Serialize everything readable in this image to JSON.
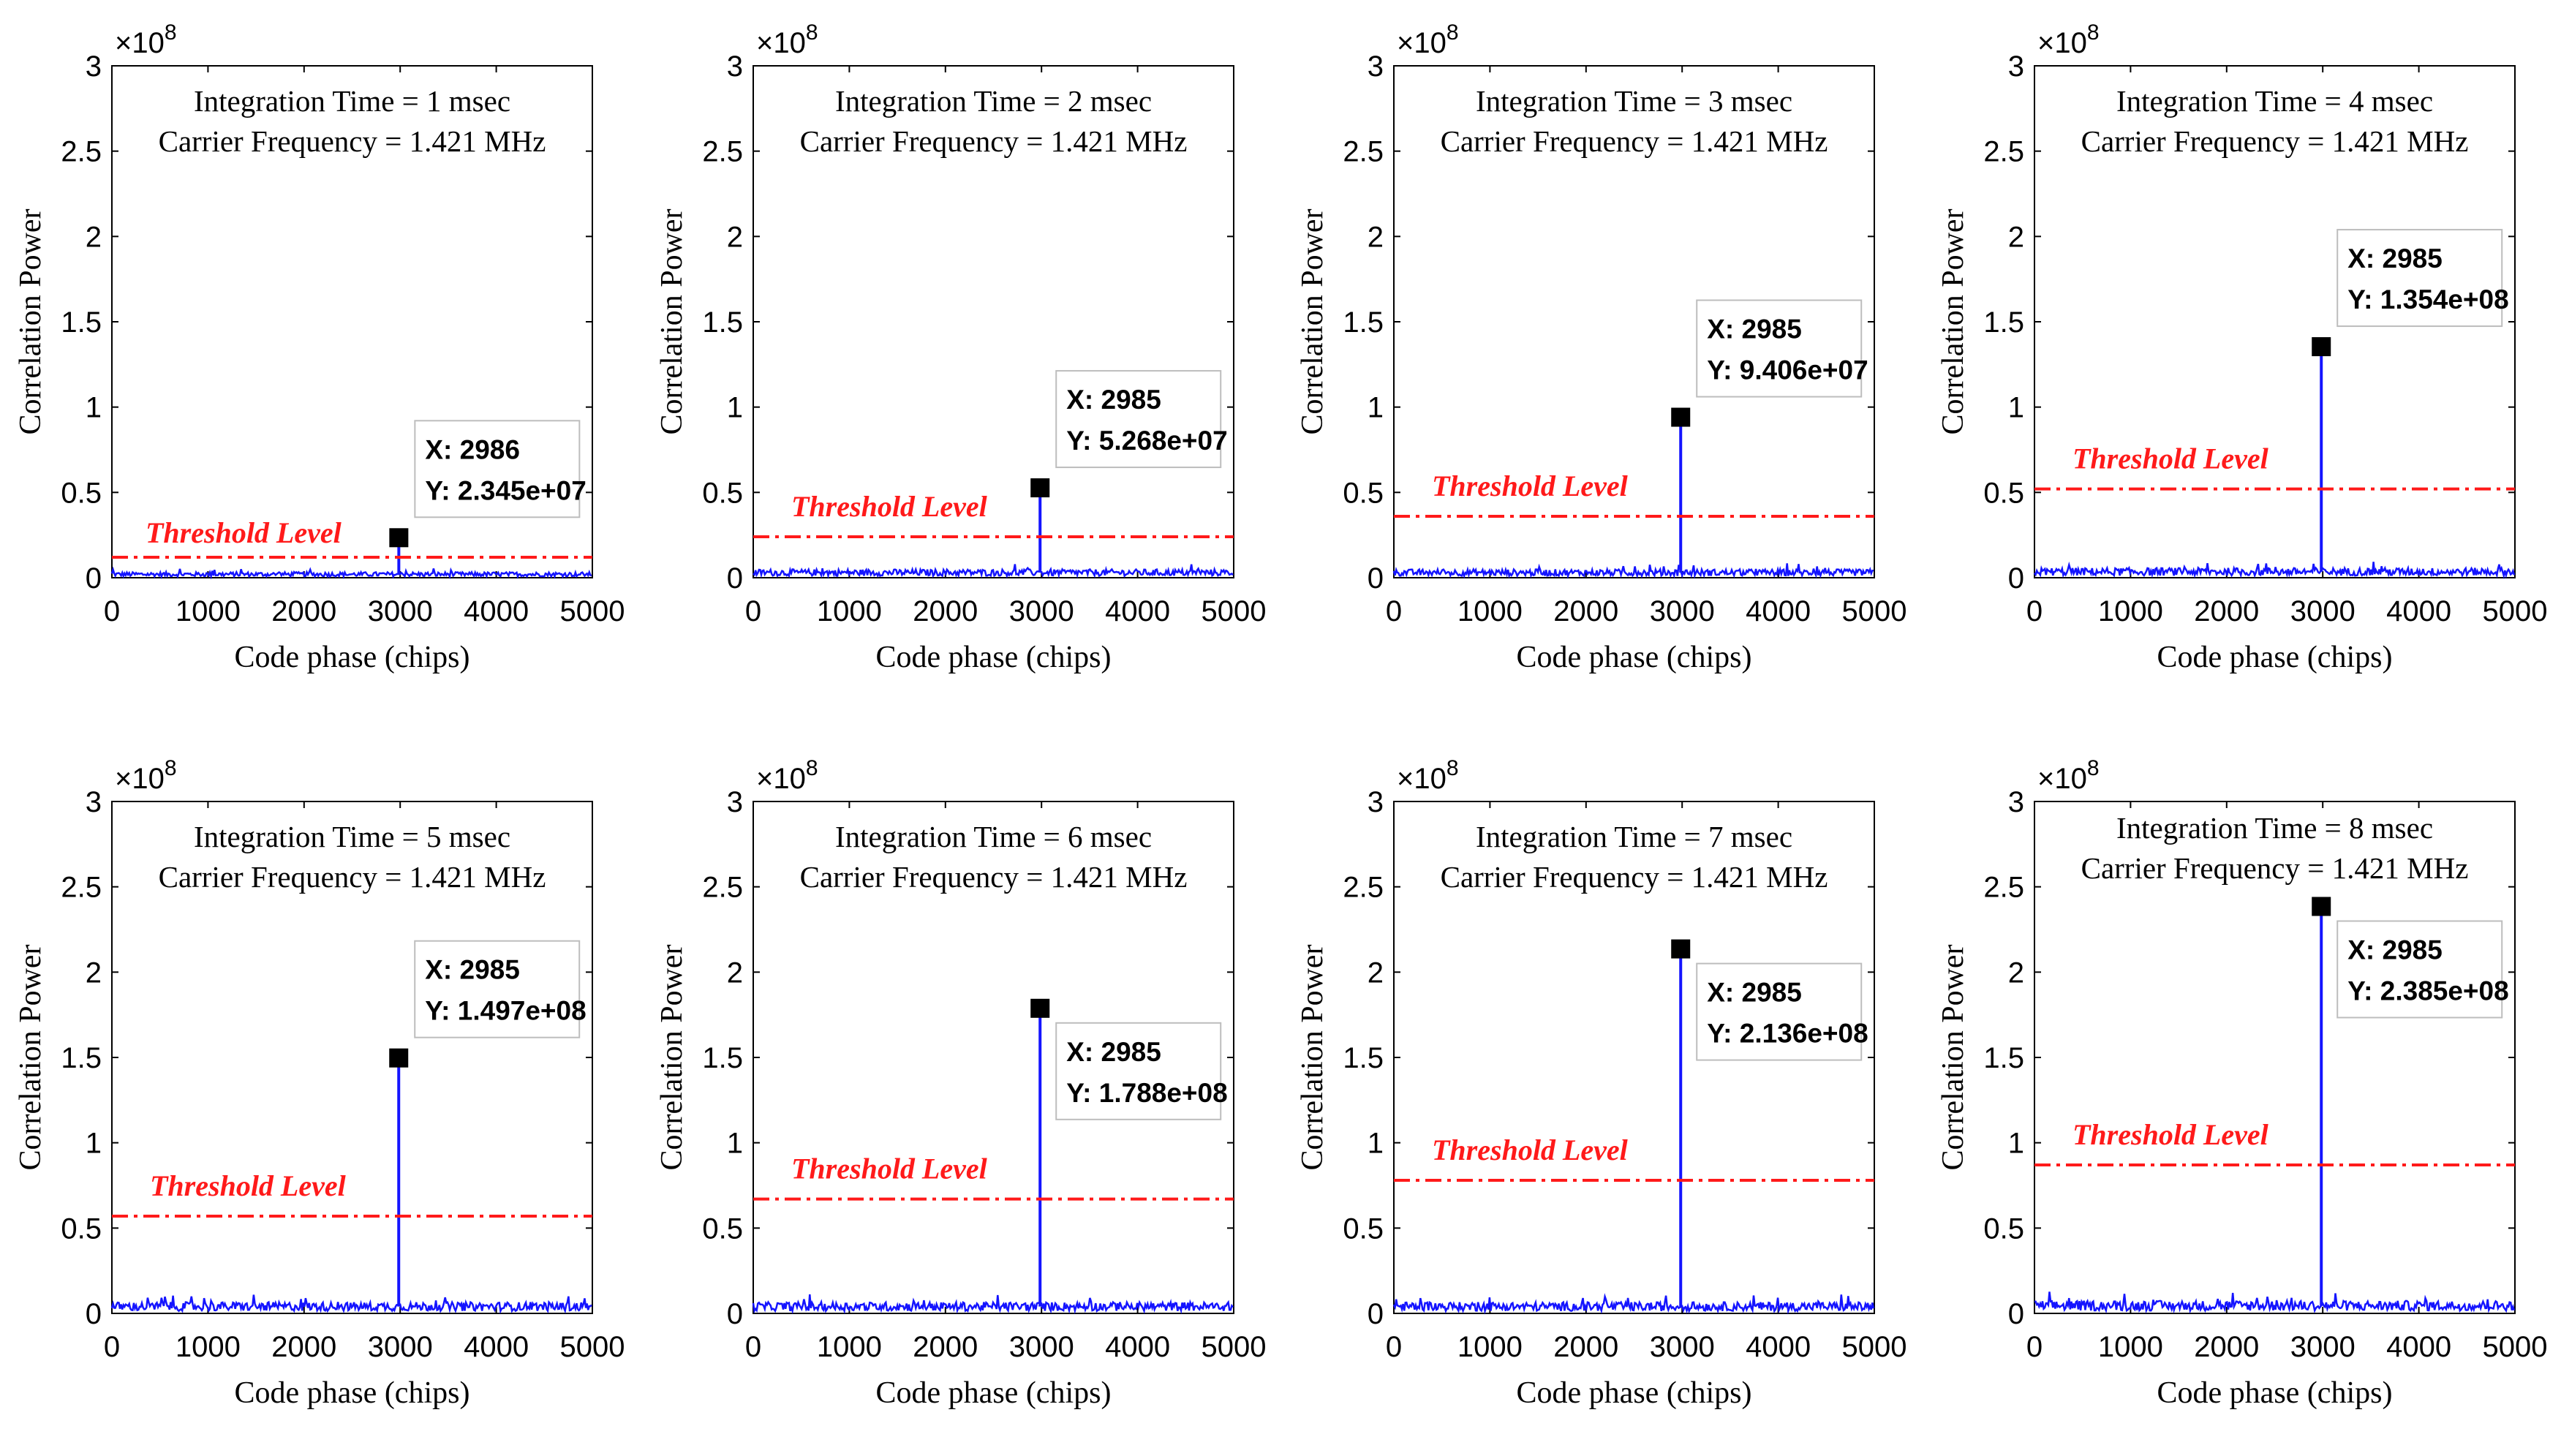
{
  "chart_data": [
    {
      "type": "line",
      "title": "Integration Time = 1 msec",
      "subtitle": "Carrier Frequency = 1.421 MHz",
      "xlabel": "Code phase (chips)",
      "ylabel": "Correlation Power",
      "exponent_base": "×10",
      "exponent_power": "8",
      "xlim": [
        0,
        5000
      ],
      "ylim": [
        0,
        3
      ],
      "xticks": [
        "0",
        "1000",
        "2000",
        "3000",
        "4000",
        "5000"
      ],
      "yticks": [
        "0",
        "0.5",
        "1",
        "1.5",
        "2",
        "2.5",
        "3"
      ],
      "noise_floor": 0.02,
      "peak": {
        "x": 2986,
        "y": 0.2345
      },
      "threshold": {
        "y": 0.12,
        "label": "Threshold Level"
      },
      "datatip": {
        "x_text": "X: 2986",
        "y_text": "Y: 2.345e+07"
      }
    },
    {
      "type": "line",
      "title": "Integration Time = 2 msec",
      "subtitle": "Carrier Frequency = 1.421 MHz",
      "xlabel": "Code phase (chips)",
      "ylabel": "Correlation Power",
      "exponent_base": "×10",
      "exponent_power": "8",
      "xlim": [
        0,
        5000
      ],
      "ylim": [
        0,
        3
      ],
      "xticks": [
        "0",
        "1000",
        "2000",
        "3000",
        "4000",
        "5000"
      ],
      "yticks": [
        "0",
        "0.5",
        "1",
        "1.5",
        "2",
        "2.5",
        "3"
      ],
      "noise_floor": 0.03,
      "peak": {
        "x": 2985,
        "y": 0.5268
      },
      "threshold": {
        "y": 0.24,
        "label": "Threshold Level"
      },
      "datatip": {
        "x_text": "X: 2985",
        "y_text": "Y: 5.268e+07"
      }
    },
    {
      "type": "line",
      "title": "Integration Time = 3 msec",
      "subtitle": "Carrier Frequency = 1.421 MHz",
      "xlabel": "Code phase (chips)",
      "ylabel": "Correlation Power",
      "exponent_base": "×10",
      "exponent_power": "8",
      "xlim": [
        0,
        5000
      ],
      "ylim": [
        0,
        3
      ],
      "xticks": [
        "0",
        "1000",
        "2000",
        "3000",
        "4000",
        "5000"
      ],
      "yticks": [
        "0",
        "0.5",
        "1",
        "1.5",
        "2",
        "2.5",
        "3"
      ],
      "noise_floor": 0.03,
      "peak": {
        "x": 2985,
        "y": 0.9406
      },
      "threshold": {
        "y": 0.36,
        "label": "Threshold Level"
      },
      "datatip": {
        "x_text": "X: 2985",
        "y_text": "Y: 9.406e+07"
      }
    },
    {
      "type": "line",
      "title": "Integration Time = 4 msec",
      "subtitle": "Carrier Frequency = 1.421 MHz",
      "xlabel": "Code phase (chips)",
      "ylabel": "Correlation Power",
      "exponent_base": "×10",
      "exponent_power": "8",
      "xlim": [
        0,
        5000
      ],
      "ylim": [
        0,
        3
      ],
      "xticks": [
        "0",
        "1000",
        "2000",
        "3000",
        "4000",
        "5000"
      ],
      "yticks": [
        "0",
        "0.5",
        "1",
        "1.5",
        "2",
        "2.5",
        "3"
      ],
      "noise_floor": 0.035,
      "peak": {
        "x": 2985,
        "y": 1.354
      },
      "threshold": {
        "y": 0.52,
        "label": "Threshold Level"
      },
      "datatip": {
        "x_text": "X: 2985",
        "y_text": "Y: 1.354e+08"
      }
    },
    {
      "type": "line",
      "title": "Integration Time = 5 msec",
      "subtitle": "Carrier Frequency = 1.421 MHz",
      "xlabel": "Code phase (chips)",
      "ylabel": "Correlation Power",
      "exponent_base": "×10",
      "exponent_power": "8",
      "xlim": [
        0,
        5000
      ],
      "ylim": [
        0,
        3
      ],
      "xticks": [
        "0",
        "1000",
        "2000",
        "3000",
        "4000",
        "5000"
      ],
      "yticks": [
        "0",
        "0.5",
        "1",
        "1.5",
        "2",
        "2.5",
        "3"
      ],
      "noise_floor": 0.04,
      "peak": {
        "x": 2985,
        "y": 1.497
      },
      "threshold": {
        "y": 0.57,
        "label": "Threshold Level"
      },
      "datatip": {
        "x_text": "X: 2985",
        "y_text": "Y: 1.497e+08"
      }
    },
    {
      "type": "line",
      "title": "Integration Time = 6 msec",
      "subtitle": "Carrier Frequency = 1.421 MHz",
      "xlabel": "Code phase (chips)",
      "ylabel": "Correlation Power",
      "exponent_base": "×10",
      "exponent_power": "8",
      "xlim": [
        0,
        5000
      ],
      "ylim": [
        0,
        3
      ],
      "xticks": [
        "0",
        "1000",
        "2000",
        "3000",
        "4000",
        "5000"
      ],
      "yticks": [
        "0",
        "0.5",
        "1",
        "1.5",
        "2",
        "2.5",
        "3"
      ],
      "noise_floor": 0.04,
      "peak": {
        "x": 2985,
        "y": 1.788
      },
      "threshold": {
        "y": 0.67,
        "label": "Threshold Level"
      },
      "datatip": {
        "x_text": "X: 2985",
        "y_text": "Y: 1.788e+08"
      }
    },
    {
      "type": "line",
      "title": "Integration Time = 7 msec",
      "subtitle": "Carrier Frequency = 1.421 MHz",
      "xlabel": "Code phase (chips)",
      "ylabel": "Correlation Power",
      "exponent_base": "×10",
      "exponent_power": "8",
      "xlim": [
        0,
        5000
      ],
      "ylim": [
        0,
        3
      ],
      "xticks": [
        "0",
        "1000",
        "2000",
        "3000",
        "4000",
        "5000"
      ],
      "yticks": [
        "0",
        "0.5",
        "1",
        "1.5",
        "2",
        "2.5",
        "3"
      ],
      "noise_floor": 0.04,
      "peak": {
        "x": 2985,
        "y": 2.136
      },
      "threshold": {
        "y": 0.78,
        "label": "Threshold Level"
      },
      "datatip": {
        "x_text": "X: 2985",
        "y_text": "Y: 2.136e+08"
      }
    },
    {
      "type": "line",
      "title": "Integration Time = 8 msec",
      "subtitle": "Carrier Frequency = 1.421 MHz",
      "xlabel": "Code phase (chips)",
      "ylabel": "Correlation Power",
      "exponent_base": "×10",
      "exponent_power": "8",
      "xlim": [
        0,
        5000
      ],
      "ylim": [
        0,
        3
      ],
      "xticks": [
        "0",
        "1000",
        "2000",
        "3000",
        "4000",
        "5000"
      ],
      "yticks": [
        "0",
        "0.5",
        "1",
        "1.5",
        "2",
        "2.5",
        "3"
      ],
      "noise_floor": 0.045,
      "peak": {
        "x": 2985,
        "y": 2.385
      },
      "threshold": {
        "y": 0.87,
        "label": "Threshold Level"
      },
      "datatip": {
        "x_text": "X: 2985",
        "y_text": "Y: 2.385e+08"
      }
    }
  ]
}
